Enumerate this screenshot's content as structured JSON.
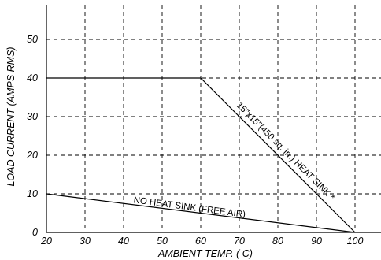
{
  "chart_data": {
    "type": "line",
    "title": "",
    "xlabel": "AMBIENT TEMP. ( C)",
    "ylabel": "LOAD CURRENT (AMPS RMS)",
    "xlim": [
      20,
      105
    ],
    "ylim": [
      0,
      58
    ],
    "xticks": [
      20,
      30,
      40,
      50,
      60,
      70,
      80,
      90,
      100
    ],
    "yticks": [
      0,
      10,
      20,
      30,
      40,
      50
    ],
    "grid": true,
    "legend": "none",
    "series": [
      {
        "x": [
          20,
          60,
          100
        ],
        "y": [
          40,
          40,
          0
        ]
      },
      {
        "x": [
          20,
          100
        ],
        "y": [
          10,
          0
        ]
      }
    ],
    "annotations": [
      {
        "text": "15\"x15\"(450 sq. in.) HEAT SINK *",
        "x": 81.5,
        "y": 20.5,
        "angle": 45
      },
      {
        "text": "NO HEAT SINK (FREE AIR)",
        "x": 57,
        "y": 5.8,
        "angle": 7.5
      }
    ]
  }
}
